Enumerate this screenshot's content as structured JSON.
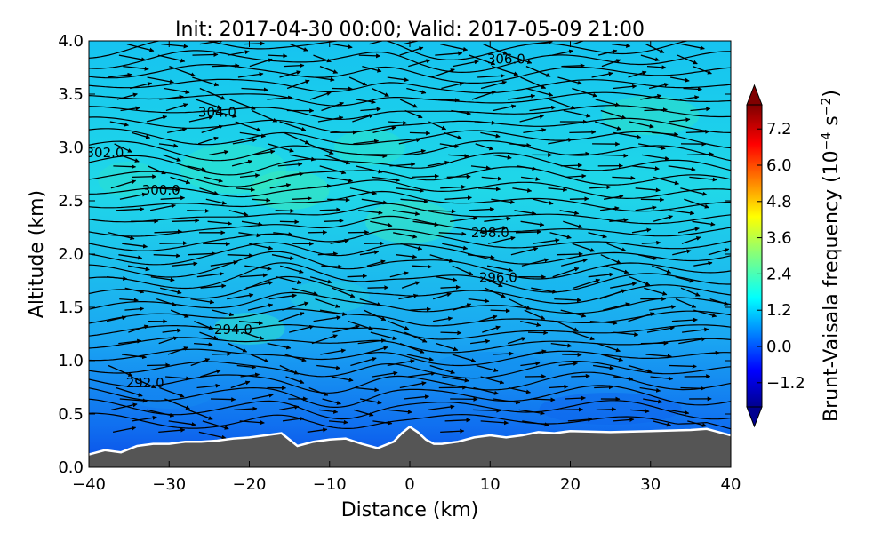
{
  "chart_data": {
    "type": "contour",
    "title": "Init: 2017-04-30 00:00; Valid: 2017-05-09 21:00",
    "xlabel": "Distance (km)",
    "ylabel": "Altitude (km)",
    "xlim": [
      -40,
      40
    ],
    "ylim": [
      0.0,
      4.0
    ],
    "xticks": [
      -40,
      -30,
      -20,
      -10,
      0,
      10,
      20,
      30,
      40
    ],
    "xtick_labels": [
      "−40",
      "−30",
      "−20",
      "−10",
      "0",
      "10",
      "20",
      "30",
      "40"
    ],
    "yticks": [
      0.0,
      0.5,
      1.0,
      1.5,
      2.0,
      2.5,
      3.0,
      3.5,
      4.0
    ],
    "ytick_labels": [
      "0.0",
      "0.5",
      "1.0",
      "1.5",
      "2.0",
      "2.5",
      "3.0",
      "3.5",
      "4.0"
    ],
    "colorbar": {
      "label_main": "Brunt-Vaisala frequency (10",
      "label_exp1": "−4",
      "label_mid": " s",
      "label_exp2": "−2",
      "label_end": ")",
      "range": [
        -2.0,
        8.0
      ],
      "ticks": [
        -1.2,
        0.0,
        1.2,
        2.4,
        3.6,
        4.8,
        6.0,
        7.2
      ],
      "tick_labels": [
        "−1.2",
        "0.0",
        "1.2",
        "2.4",
        "3.6",
        "4.8",
        "6.0",
        "7.2"
      ],
      "extend": "both",
      "colormap": "jet"
    },
    "terrain": {
      "color": "#555555",
      "x": [
        -40,
        -38,
        -36,
        -34,
        -32,
        -30,
        -28,
        -26,
        -24,
        -22,
        -20,
        -18,
        -16,
        -14,
        -12,
        -10,
        -8,
        -6,
        -4,
        -2,
        -1,
        0,
        1,
        2,
        3,
        4,
        6,
        8,
        10,
        12,
        14,
        16,
        18,
        20,
        25,
        30,
        35,
        37,
        38,
        40
      ],
      "z": [
        0.12,
        0.16,
        0.14,
        0.2,
        0.22,
        0.22,
        0.24,
        0.24,
        0.25,
        0.27,
        0.28,
        0.3,
        0.32,
        0.2,
        0.24,
        0.26,
        0.27,
        0.22,
        0.18,
        0.24,
        0.32,
        0.38,
        0.33,
        0.26,
        0.22,
        0.22,
        0.24,
        0.28,
        0.3,
        0.28,
        0.3,
        0.33,
        0.32,
        0.34,
        0.33,
        0.34,
        0.35,
        0.36,
        0.34,
        0.3
      ]
    },
    "isentropes": {
      "units": "K",
      "values": [
        292,
        294,
        296,
        298,
        300,
        302,
        304,
        306
      ],
      "labels": [
        {
          "text": "292.0",
          "x": -33,
          "z": 0.79
        },
        {
          "text": "294.0",
          "x": -22,
          "z": 1.29
        },
        {
          "text": "296.0",
          "x": 11,
          "z": 1.78
        },
        {
          "text": "298.0",
          "x": 10,
          "z": 2.2
        },
        {
          "text": "300.0",
          "x": -31,
          "z": 2.6
        },
        {
          "text": "302.0",
          "x": -38,
          "z": 2.95
        },
        {
          "text": "304.0",
          "x": -24,
          "z": 3.33
        },
        {
          "text": "306.0",
          "x": 12,
          "z": 3.83
        }
      ]
    },
    "wind_vectors": "horizontal-section wind arrows, mostly eastward"
  }
}
